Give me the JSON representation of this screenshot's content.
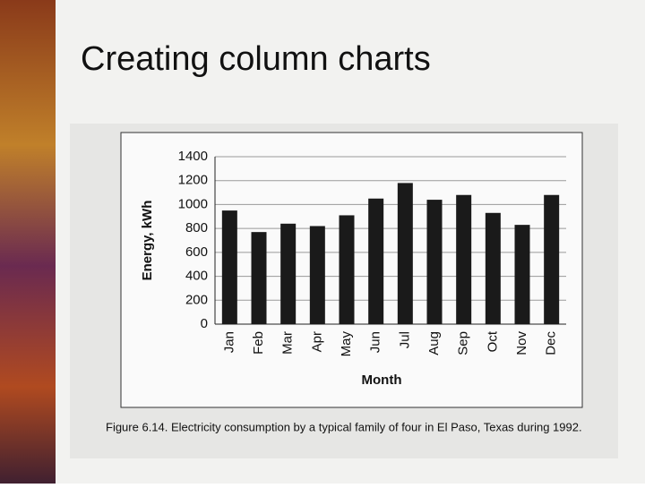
{
  "chart_data": {
    "type": "bar",
    "title": "Creating column charts",
    "caption": "Figure 6.14. Electricity consumption by a typical family of four in El Paso, Texas during 1992.",
    "xlabel": "Month",
    "ylabel": "Energy, kWh",
    "categories": [
      "Jan",
      "Feb",
      "Mar",
      "Apr",
      "May",
      "Jun",
      "Jul",
      "Aug",
      "Sep",
      "Oct",
      "Nov",
      "Dec"
    ],
    "values": [
      950,
      770,
      840,
      820,
      910,
      1050,
      1180,
      1040,
      1080,
      930,
      830,
      1080
    ],
    "color": "#1a1a1a",
    "ylim": [
      0,
      1400
    ],
    "yticks": [
      0,
      200,
      400,
      600,
      800,
      1000,
      1200,
      1400
    ],
    "grid": true
  }
}
